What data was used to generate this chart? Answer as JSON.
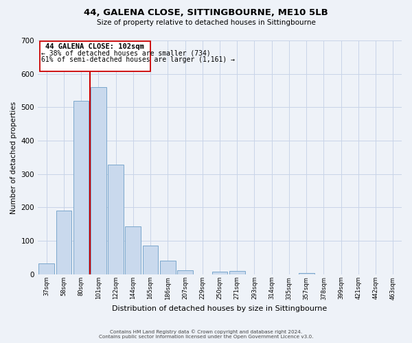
{
  "title": "44, GALENA CLOSE, SITTINGBOURNE, ME10 5LB",
  "subtitle": "Size of property relative to detached houses in Sittingbourne",
  "xlabel": "Distribution of detached houses by size in Sittingbourne",
  "ylabel": "Number of detached properties",
  "footer_line1": "Contains HM Land Registry data © Crown copyright and database right 2024.",
  "footer_line2": "Contains public sector information licensed under the Open Government Licence v3.0.",
  "bar_labels": [
    "37sqm",
    "58sqm",
    "80sqm",
    "101sqm",
    "122sqm",
    "144sqm",
    "165sqm",
    "186sqm",
    "207sqm",
    "229sqm",
    "250sqm",
    "271sqm",
    "293sqm",
    "314sqm",
    "335sqm",
    "357sqm",
    "378sqm",
    "399sqm",
    "421sqm",
    "442sqm",
    "463sqm"
  ],
  "bar_values": [
    32,
    190,
    520,
    560,
    328,
    143,
    87,
    40,
    13,
    0,
    8,
    10,
    0,
    0,
    0,
    3,
    0,
    0,
    0,
    0,
    0
  ],
  "bar_color": "#c9d9ed",
  "bar_edge_color": "#7ba7cc",
  "property_label": "44 GALENA CLOSE: 102sqm",
  "annotation_line1": "← 38% of detached houses are smaller (734)",
  "annotation_line2": "61% of semi-detached houses are larger (1,161) →",
  "line_color": "#cc0000",
  "box_edge_color": "#cc0000",
  "ylim": [
    0,
    700
  ],
  "yticks": [
    0,
    100,
    200,
    300,
    400,
    500,
    600,
    700
  ],
  "grid_color": "#c8d4e8",
  "background_color": "#eef2f8"
}
